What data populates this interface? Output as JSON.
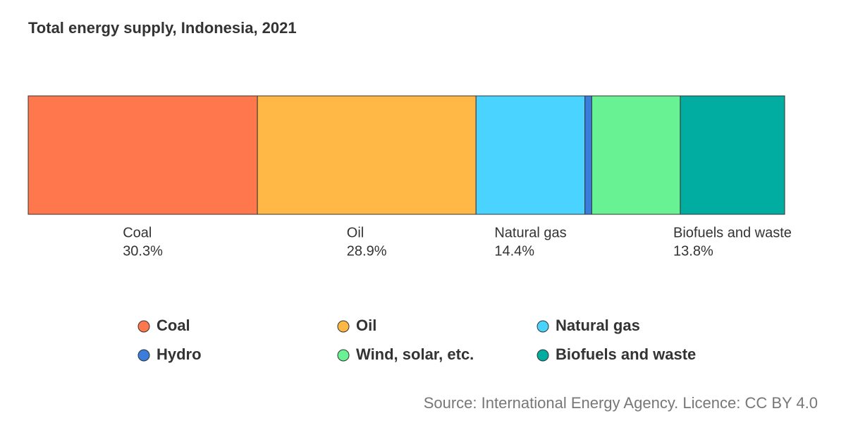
{
  "chart_data": {
    "type": "stacked-bar",
    "title": "Total energy supply, Indonesia, 2021",
    "series": [
      {
        "name": "Coal",
        "color": "#ff774d",
        "values": [
          30.3
        ],
        "value_labels": [
          "30.3%"
        ]
      },
      {
        "name": "Oil",
        "color": "#ffb845",
        "values": [
          28.9
        ],
        "value_labels": [
          "28.9%"
        ]
      },
      {
        "name": "Natural gas",
        "color": "#4ad3ff",
        "values": [
          14.4
        ],
        "value_labels": [
          "14.4%"
        ]
      },
      {
        "name": "Hydro",
        "color": "#3a7ddb",
        "values": [
          0.9
        ]
      },
      {
        "name": "Wind, solar, etc.",
        "color": "#69f293",
        "values": [
          11.7
        ]
      },
      {
        "name": "Biofuels and waste",
        "color": "#00ada0",
        "values": [
          13.8
        ],
        "value_labels": [
          "13.8%"
        ]
      }
    ],
    "source": "Source: International Energy Agency. Licence: CC BY 4.0"
  }
}
